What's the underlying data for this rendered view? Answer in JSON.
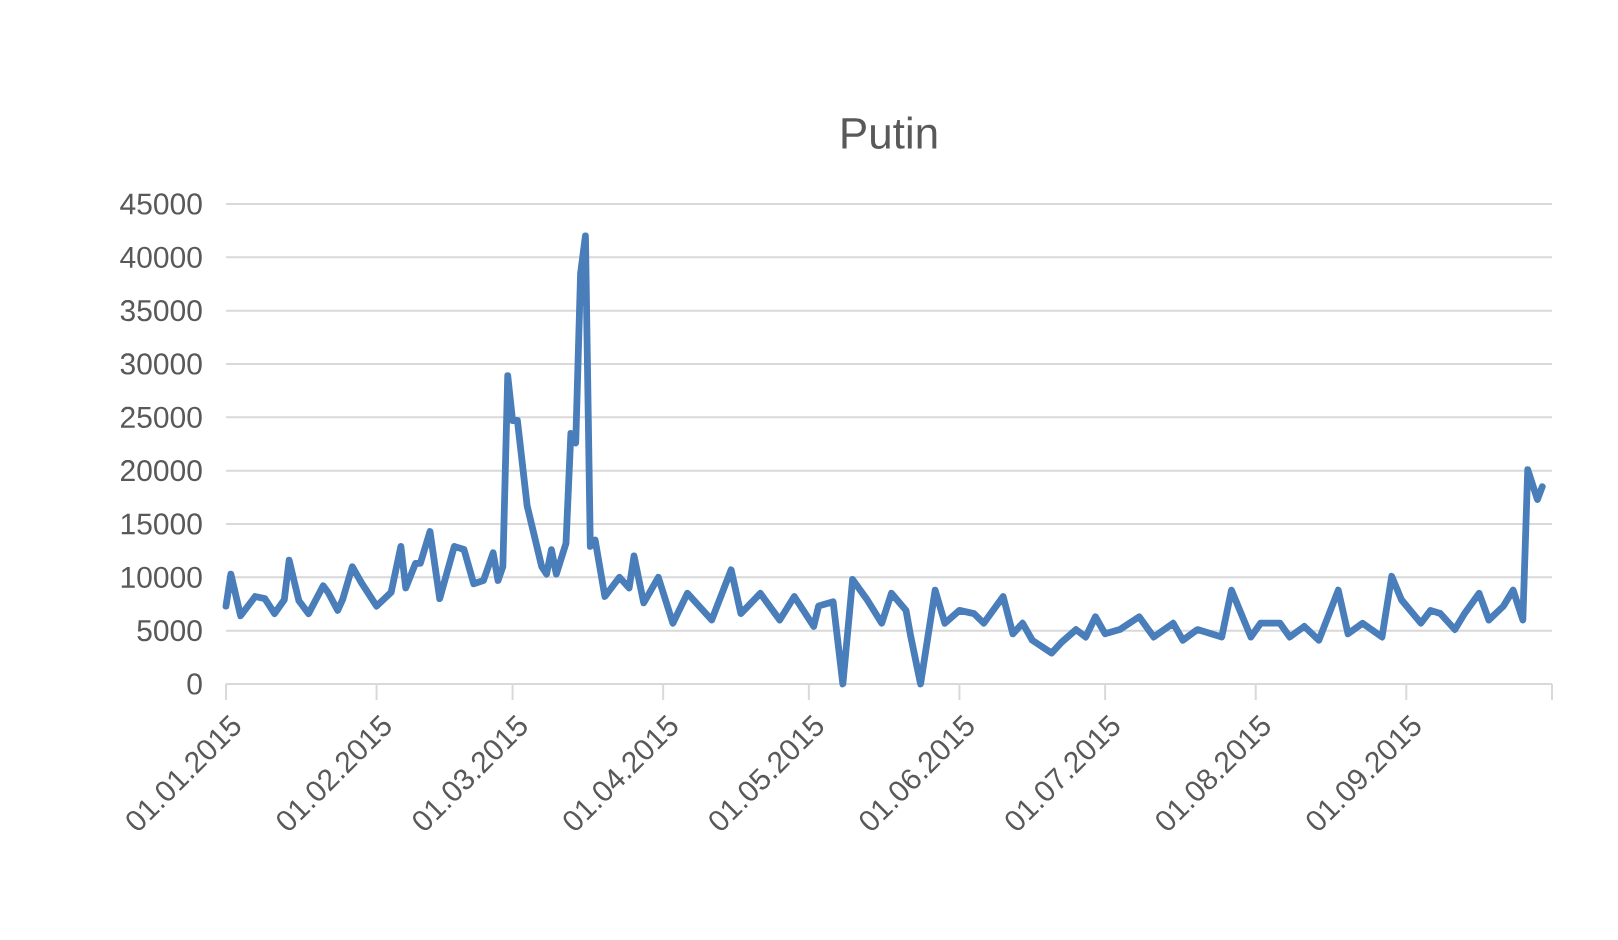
{
  "chart_data": {
    "type": "line",
    "title": "Putin",
    "x": [
      "2015-01-01",
      "2015-01-02",
      "2015-01-04",
      "2015-01-07",
      "2015-01-09",
      "2015-01-11",
      "2015-01-13",
      "2015-01-14",
      "2015-01-16",
      "2015-01-18",
      "2015-01-21",
      "2015-01-22",
      "2015-01-24",
      "2015-01-25",
      "2015-01-27",
      "2015-01-29",
      "2015-02-01",
      "2015-02-04",
      "2015-02-06",
      "2015-02-07",
      "2015-02-09",
      "2015-02-10",
      "2015-02-12",
      "2015-02-14",
      "2015-02-17",
      "2015-02-19",
      "2015-02-21",
      "2015-02-23",
      "2015-02-25",
      "2015-02-26",
      "2015-02-27",
      "2015-02-28",
      "2015-03-01",
      "2015-03-02",
      "2015-03-04",
      "2015-03-05",
      "2015-03-07",
      "2015-03-08",
      "2015-03-09",
      "2015-03-10",
      "2015-03-12",
      "2015-03-13",
      "2015-03-14",
      "2015-03-15",
      "2015-03-16",
      "2015-03-17",
      "2015-03-18",
      "2015-03-20",
      "2015-03-23",
      "2015-03-25",
      "2015-03-26",
      "2015-03-28",
      "2015-03-31",
      "2015-04-03",
      "2015-04-06",
      "2015-04-11",
      "2015-04-15",
      "2015-04-17",
      "2015-04-21",
      "2015-04-25",
      "2015-04-28",
      "2015-05-02",
      "2015-05-03",
      "2015-05-06",
      "2015-05-08",
      "2015-05-10",
      "2015-05-13",
      "2015-05-16",
      "2015-05-18",
      "2015-05-21",
      "2015-05-22",
      "2015-05-24",
      "2015-05-27",
      "2015-05-29",
      "2015-06-01",
      "2015-06-04",
      "2015-06-06",
      "2015-06-10",
      "2015-06-12",
      "2015-06-14",
      "2015-06-16",
      "2015-06-20",
      "2015-06-22",
      "2015-06-25",
      "2015-06-27",
      "2015-06-29",
      "2015-07-01",
      "2015-07-04",
      "2015-07-08",
      "2015-07-11",
      "2015-07-15",
      "2015-07-17",
      "2015-07-20",
      "2015-07-25",
      "2015-07-27",
      "2015-07-31",
      "2015-08-02",
      "2015-08-06",
      "2015-08-08",
      "2015-08-11",
      "2015-08-14",
      "2015-08-18",
      "2015-08-20",
      "2015-08-23",
      "2015-08-27",
      "2015-08-29",
      "2015-08-31",
      "2015-09-04",
      "2015-09-06",
      "2015-09-08",
      "2015-09-11",
      "2015-09-13",
      "2015-09-16",
      "2015-09-18",
      "2015-09-21",
      "2015-09-23",
      "2015-09-25",
      "2015-09-26",
      "2015-09-28",
      "2015-09-29"
    ],
    "series": [
      {
        "color": "#4a7ebb",
        "values": [
          7300,
          10300,
          6400,
          8200,
          8000,
          6600,
          7900,
          11600,
          7800,
          6600,
          9200,
          8600,
          6900,
          7900,
          11000,
          9400,
          7300,
          8600,
          12900,
          9000,
          11300,
          11300,
          14300,
          8000,
          12900,
          12600,
          9400,
          9700,
          12300,
          9700,
          11000,
          28900,
          24700,
          24700,
          16700,
          14800,
          11000,
          10300,
          12600,
          10300,
          13200,
          23500,
          22600,
          38500,
          42000,
          12900,
          13500,
          8200,
          10000,
          9000,
          12000,
          7600,
          10000,
          5700,
          8500,
          6000,
          10700,
          6600,
          8500,
          6000,
          8200,
          5400,
          7300,
          7700,
          0,
          9800,
          7900,
          5700,
          8500,
          6900,
          4400,
          0,
          8800,
          5700,
          6900,
          6600,
          5700,
          8200,
          4700,
          5700,
          4100,
          2900,
          3900,
          5100,
          4400,
          6300,
          4700,
          5100,
          6300,
          4400,
          5700,
          4100,
          5100,
          4400,
          8800,
          4400,
          5700,
          5700,
          4400,
          5400,
          4100,
          8800,
          4700,
          5700,
          4400,
          10100,
          7900,
          5700,
          6900,
          6600,
          5100,
          6600,
          8500,
          6000,
          7300,
          8800,
          6000,
          20100,
          17300,
          18500
        ]
      }
    ],
    "xlim": [
      "2015-01-01",
      "2015-10-01"
    ],
    "xticks": [
      {
        "value": "2015-01-01",
        "label": "01.01.2015"
      },
      {
        "value": "2015-02-01",
        "label": "01.02.2015"
      },
      {
        "value": "2015-03-01",
        "label": "01.03.2015"
      },
      {
        "value": "2015-04-01",
        "label": "01.04.2015"
      },
      {
        "value": "2015-05-01",
        "label": "01.05.2015"
      },
      {
        "value": "2015-06-01",
        "label": "01.06.2015"
      },
      {
        "value": "2015-07-01",
        "label": "01.07.2015"
      },
      {
        "value": "2015-08-01",
        "label": "01.08.2015"
      },
      {
        "value": "2015-09-01",
        "label": "01.09.2015"
      },
      {
        "value": "2015-10-01",
        "label": null
      }
    ],
    "ylim": [
      0,
      45000
    ],
    "yticks": [
      0,
      5000,
      10000,
      15000,
      20000,
      25000,
      30000,
      35000,
      40000,
      45000
    ],
    "grid": "y",
    "marker": "none",
    "line_style": "solid"
  }
}
